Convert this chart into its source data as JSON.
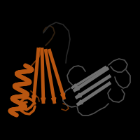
{
  "background_color": "#000000",
  "fig_size": [
    2.0,
    2.0
  ],
  "dpi": 100,
  "orange_color": "#B85510",
  "gray_color": "#707070",
  "gray_coil": "#505050",
  "orange_coil": "#7A3808",
  "dark_coil": "#303030"
}
